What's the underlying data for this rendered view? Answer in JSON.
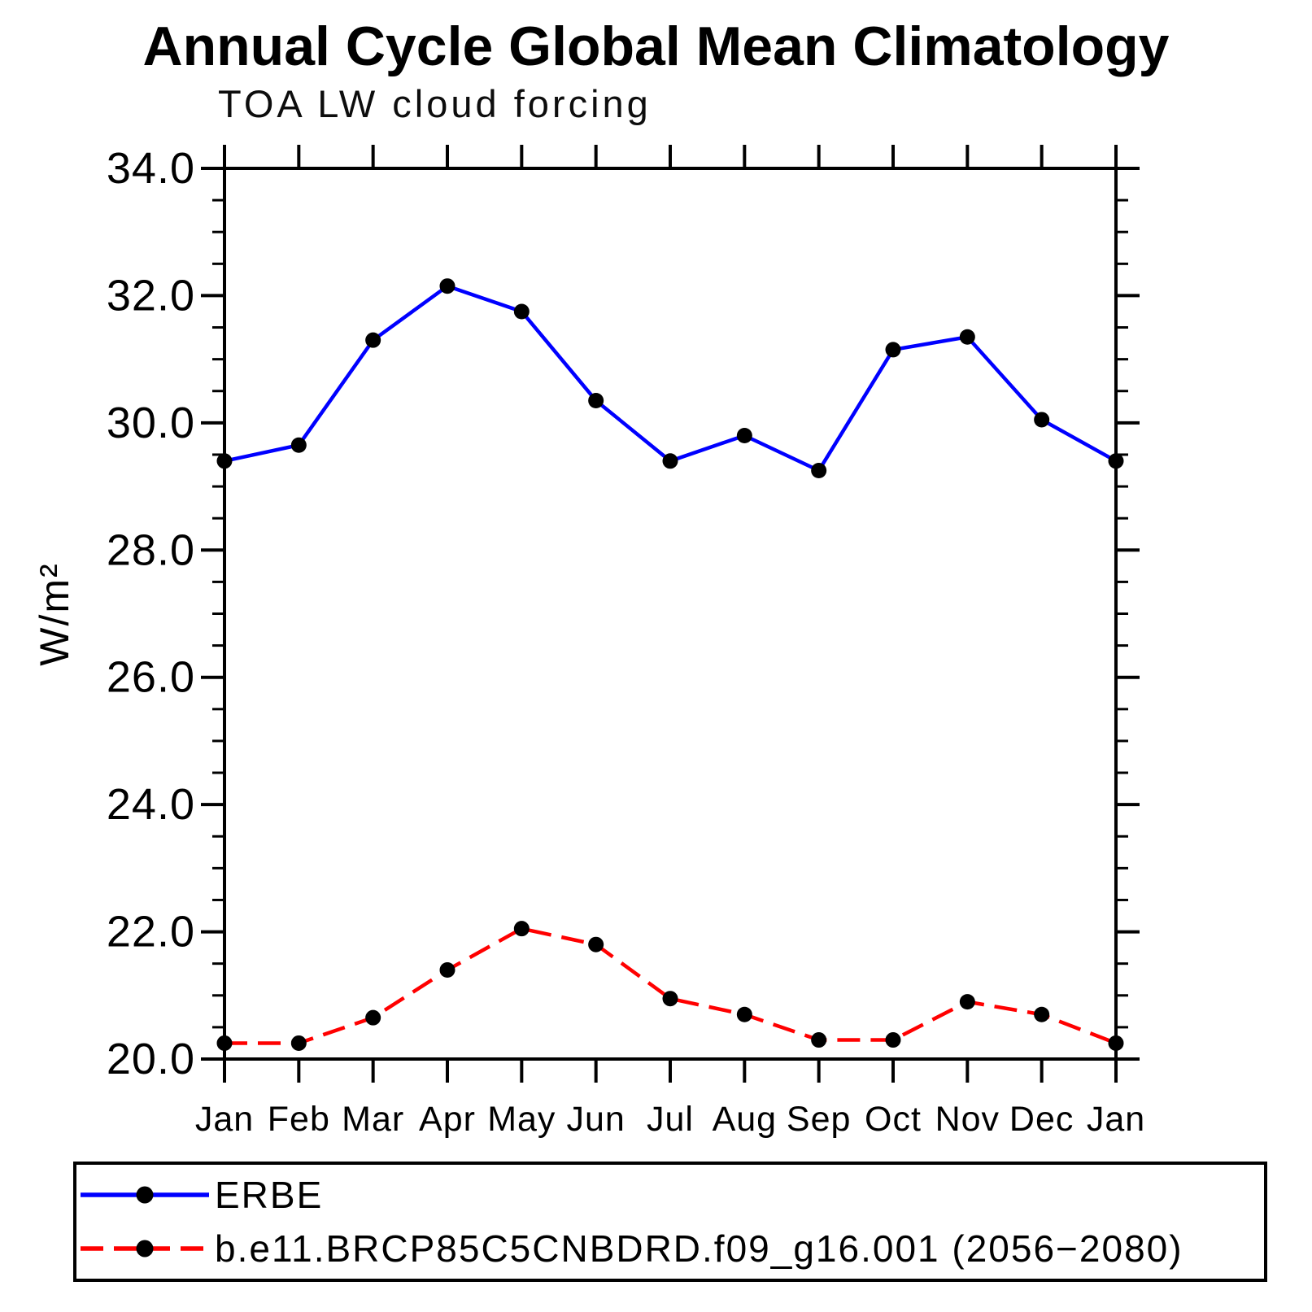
{
  "title": "Annual Cycle Global Mean Climatology",
  "subtitle": "TOA LW cloud forcing",
  "chart_data": {
    "type": "line",
    "title": "Annual Cycle Global Mean Climatology",
    "subtitle": "TOA LW cloud forcing",
    "xlabel": "",
    "ylabel": "W/m²",
    "ylim": [
      20.0,
      34.0
    ],
    "ytick_values": [
      34,
      32,
      30,
      28,
      26,
      24,
      22,
      20
    ],
    "ytick_labels": [
      "34.0",
      "32.0",
      "30.0",
      "28.0",
      "26.0",
      "24.0",
      "22.0",
      "20.0"
    ],
    "yminor_step": 0.5,
    "grid": false,
    "legend_position": "bottom",
    "categories": [
      "Jan",
      "Feb",
      "Mar",
      "Apr",
      "May",
      "Jun",
      "Jul",
      "Aug",
      "Sep",
      "Oct",
      "Nov",
      "Dec",
      "Jan"
    ],
    "series": [
      {
        "name": "ERBE",
        "color": "#0000ff",
        "line_style": "solid",
        "marker": "circle",
        "marker_color": "#000000",
        "values": [
          29.4,
          29.65,
          31.3,
          32.15,
          31.75,
          30.35,
          29.4,
          29.8,
          29.25,
          31.15,
          31.35,
          30.05,
          29.4
        ]
      },
      {
        "name": "b.e11.BRCP85C5CNBDRD.f09_g16.001 (2056−2080)",
        "color": "#ff0000",
        "line_style": "dashed",
        "marker": "circle",
        "marker_color": "#000000",
        "values": [
          20.25,
          20.25,
          20.65,
          21.4,
          22.05,
          21.8,
          20.95,
          20.7,
          20.3,
          20.3,
          20.9,
          20.7,
          20.25
        ]
      }
    ]
  }
}
